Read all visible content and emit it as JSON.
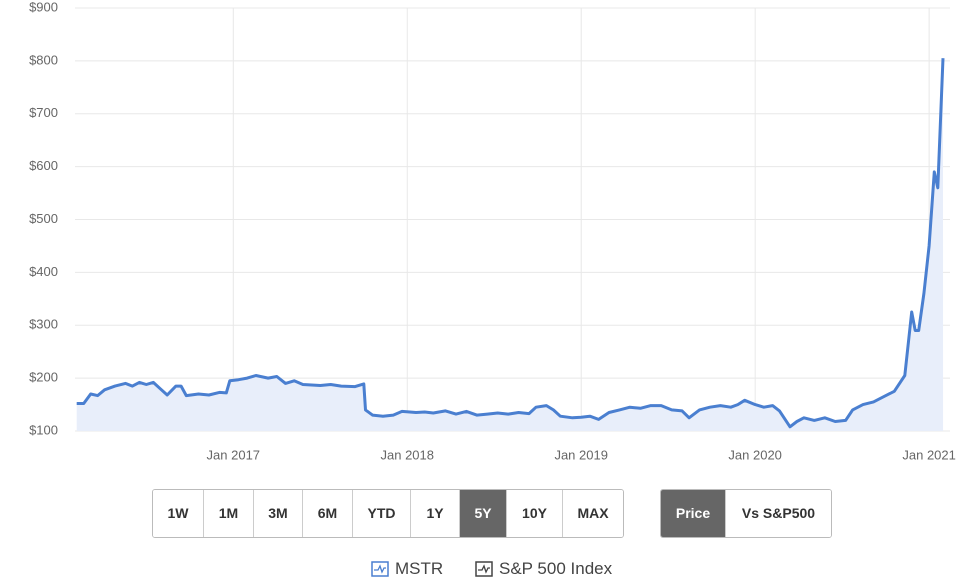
{
  "chart_data": {
    "type": "line",
    "x": [
      2016.1,
      2016.14,
      2016.18,
      2016.22,
      2016.26,
      2016.32,
      2016.38,
      2016.42,
      2016.46,
      2016.5,
      2016.54,
      2016.58,
      2016.62,
      2016.67,
      2016.7,
      2016.73,
      2016.8,
      2016.86,
      2016.92,
      2016.96,
      2016.98,
      2017.03,
      2017.08,
      2017.13,
      2017.2,
      2017.25,
      2017.3,
      2017.35,
      2017.4,
      2017.5,
      2017.56,
      2017.62,
      2017.7,
      2017.75,
      2017.76,
      2017.8,
      2017.86,
      2017.92,
      2017.97,
      2018.05,
      2018.1,
      2018.15,
      2018.22,
      2018.28,
      2018.34,
      2018.4,
      2018.46,
      2018.52,
      2018.58,
      2018.64,
      2018.7,
      2018.74,
      2018.8,
      2018.84,
      2018.88,
      2018.95,
      2019.0,
      2019.05,
      2019.1,
      2019.16,
      2019.22,
      2019.28,
      2019.34,
      2019.4,
      2019.46,
      2019.52,
      2019.58,
      2019.62,
      2019.68,
      2019.74,
      2019.8,
      2019.86,
      2019.9,
      2019.94,
      2020.0,
      2020.05,
      2020.1,
      2020.14,
      2020.2,
      2020.24,
      2020.28,
      2020.34,
      2020.4,
      2020.46,
      2020.52,
      2020.56,
      2020.62,
      2020.68,
      2020.74,
      2020.8,
      2020.86,
      2020.9,
      2020.92,
      2020.94,
      2020.97,
      2021.0,
      2021.03,
      2021.05,
      2021.08
    ],
    "series": [
      {
        "name": "MSTR",
        "color": "#4a7fd0",
        "area_color": "#e8eefa",
        "values": [
          152,
          152,
          170,
          167,
          178,
          185,
          190,
          185,
          192,
          188,
          192,
          180,
          168,
          185,
          185,
          167,
          170,
          168,
          173,
          172,
          195,
          197,
          200,
          205,
          200,
          203,
          190,
          195,
          188,
          186,
          188,
          185,
          184,
          189,
          140,
          130,
          128,
          130,
          137,
          135,
          136,
          134,
          138,
          132,
          137,
          130,
          132,
          134,
          132,
          135,
          133,
          145,
          148,
          140,
          128,
          125,
          126,
          128,
          122,
          135,
          140,
          145,
          143,
          148,
          148,
          140,
          138,
          125,
          140,
          145,
          148,
          145,
          150,
          158,
          150,
          145,
          148,
          138,
          108,
          118,
          125,
          120,
          125,
          118,
          120,
          140,
          150,
          155,
          165,
          175,
          205,
          325,
          290,
          290,
          360,
          450,
          590,
          560,
          805
        ]
      }
    ],
    "inactive_legend": [
      "S&P 500 Index"
    ],
    "xlim": [
      2016.09,
      2021.12
    ],
    "xticks": [
      {
        "value": 2017,
        "label": "Jan 2017"
      },
      {
        "value": 2018,
        "label": "Jan 2018"
      },
      {
        "value": 2019,
        "label": "Jan 2019"
      },
      {
        "value": 2020,
        "label": "Jan 2020"
      },
      {
        "value": 2021,
        "label": "Jan 2021"
      }
    ],
    "ylim": [
      100,
      900
    ],
    "yticks": [
      {
        "value": 100,
        "label": "$100"
      },
      {
        "value": 200,
        "label": "$200"
      },
      {
        "value": 300,
        "label": "$300"
      },
      {
        "value": 400,
        "label": "$400"
      },
      {
        "value": 500,
        "label": "$500"
      },
      {
        "value": 600,
        "label": "$600"
      },
      {
        "value": 700,
        "label": "$700"
      },
      {
        "value": 800,
        "label": "$800"
      },
      {
        "value": 900,
        "label": "$900"
      }
    ],
    "grid": true
  },
  "controls": {
    "ranges": [
      "1W",
      "1M",
      "3M",
      "6M",
      "YTD",
      "1Y",
      "5Y",
      "10Y",
      "MAX"
    ],
    "selected_range": "5Y",
    "views": [
      "Price",
      "Vs S&P500"
    ],
    "selected_view": "Price"
  }
}
